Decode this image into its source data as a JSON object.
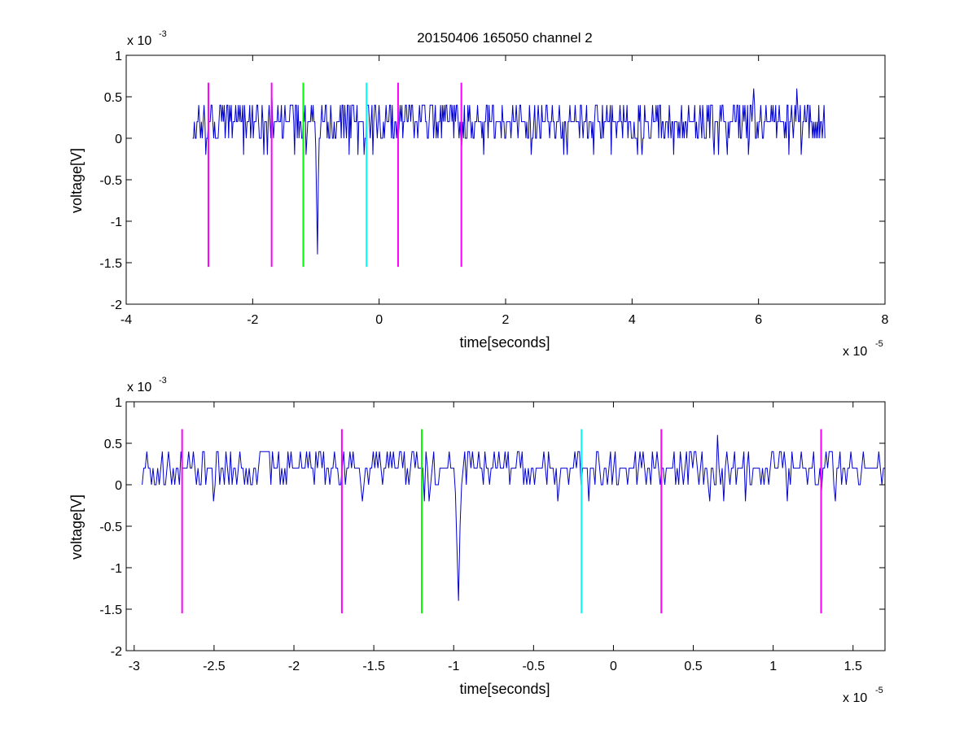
{
  "chart_data": [
    {
      "type": "line",
      "title": "20150406 165050 channel 2",
      "xlabel": "time[seconds]",
      "ylabel": "voltage[V]",
      "x_exponent": {
        "base": "x 10",
        "power": "-5"
      },
      "y_exponent": {
        "base": "x 10",
        "power": "-3"
      },
      "xlim": [
        -4,
        8
      ],
      "ylim": [
        -2,
        1
      ],
      "x_ticks": [
        -4,
        -2,
        0,
        2,
        4,
        6,
        8
      ],
      "x_tick_labels": [
        "-4",
        "-2",
        "0",
        "2",
        "4",
        "6",
        "8"
      ],
      "y_ticks": [
        -2,
        -1.5,
        -1,
        -0.5,
        0,
        0.5,
        1
      ],
      "y_tick_labels": [
        "-2",
        "-1.5",
        "-1",
        "-0.5",
        "0",
        "0.5",
        "1"
      ],
      "signal": {
        "color": "#0000cc",
        "x_start": -2.95,
        "x_end": 7.05,
        "baseline": 0.2,
        "dips": [
          {
            "x": -1.15,
            "y": -0.2
          },
          {
            "x": -0.97,
            "y": -1.4
          },
          {
            "x": 1.3,
            "y": -0.1
          }
        ],
        "max_spike": {
          "x": 6.6,
          "y": 0.6
        }
      },
      "markers": [
        {
          "x": -2.7,
          "color": "#ff00ff"
        },
        {
          "x": -1.7,
          "color": "#ff00ff"
        },
        {
          "x": -1.2,
          "color": "#00ff00"
        },
        {
          "x": -0.2,
          "color": "#00ffff"
        },
        {
          "x": 0.3,
          "color": "#ff00ff"
        },
        {
          "x": 1.3,
          "color": "#ff00ff"
        }
      ],
      "marker_range": [
        -1.55,
        0.67
      ],
      "grid": false
    },
    {
      "type": "line",
      "title": "",
      "xlabel": "time[seconds]",
      "ylabel": "voltage[V]",
      "x_exponent": {
        "base": "x 10",
        "power": "-5"
      },
      "y_exponent": {
        "base": "x 10",
        "power": "-3"
      },
      "xlim": [
        -3.05,
        1.7
      ],
      "ylim": [
        -2,
        1
      ],
      "x_ticks": [
        -3,
        -2.5,
        -2,
        -1.5,
        -1,
        -0.5,
        0,
        0.5,
        1,
        1.5
      ],
      "x_tick_labels": [
        "-3",
        "-2.5",
        "-2",
        "-1.5",
        "-1",
        "-0.5",
        "0",
        "0.5",
        "1",
        "1.5"
      ],
      "y_ticks": [
        -2,
        -1.5,
        -1,
        -0.5,
        0,
        0.5,
        1
      ],
      "y_tick_labels": [
        "-2",
        "-1.5",
        "-1",
        "-0.5",
        "0",
        "0.5",
        "1"
      ],
      "signal": {
        "color": "#0000cc",
        "x_start": -2.95,
        "x_end": 1.7,
        "baseline": 0.2,
        "dips": [
          {
            "x": -1.18,
            "y": -0.2
          },
          {
            "x": -0.97,
            "y": -1.4
          },
          {
            "x": 1.3,
            "y": -0.1
          }
        ],
        "max_spike": {
          "x": 0.65,
          "y": 0.6
        }
      },
      "markers": [
        {
          "x": -2.7,
          "color": "#ff00ff"
        },
        {
          "x": -1.7,
          "color": "#ff00ff"
        },
        {
          "x": -1.2,
          "color": "#00ff00"
        },
        {
          "x": -0.2,
          "color": "#00ffff"
        },
        {
          "x": 0.3,
          "color": "#ff00ff"
        },
        {
          "x": 1.3,
          "color": "#ff00ff"
        }
      ],
      "marker_range": [
        -1.55,
        0.67
      ],
      "grid": false
    }
  ]
}
